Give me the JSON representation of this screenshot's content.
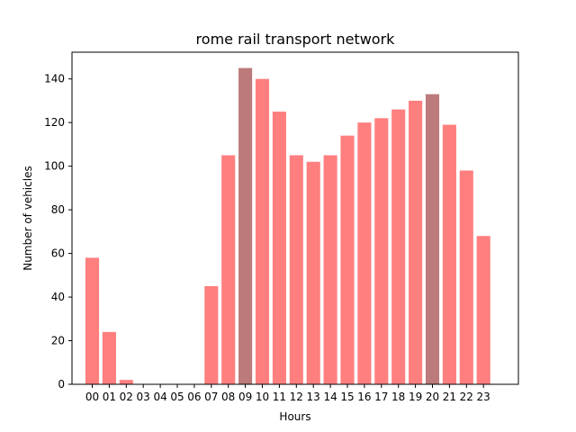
{
  "chart_data": {
    "type": "bar",
    "title": "rome rail transport network",
    "xlabel": "Hours",
    "ylabel": "Number of vehicles",
    "categories": [
      "00",
      "01",
      "02",
      "03",
      "04",
      "05",
      "06",
      "07",
      "08",
      "09",
      "10",
      "11",
      "12",
      "13",
      "14",
      "15",
      "16",
      "17",
      "18",
      "19",
      "20",
      "21",
      "22",
      "23"
    ],
    "values": [
      58,
      24,
      2,
      0,
      0,
      0,
      0,
      45,
      105,
      145,
      140,
      125,
      105,
      102,
      105,
      114,
      120,
      122,
      126,
      130,
      133,
      119,
      98,
      68
    ],
    "highlighted": [
      "09",
      "20"
    ],
    "ylim": [
      0,
      152.25
    ],
    "yticks": [
      0,
      20,
      40,
      60,
      80,
      100,
      120,
      140
    ],
    "grid": false,
    "colors": {
      "bar": "#ff7f7f",
      "highlight": "#bc7a7a",
      "axis": "#000000"
    }
  }
}
